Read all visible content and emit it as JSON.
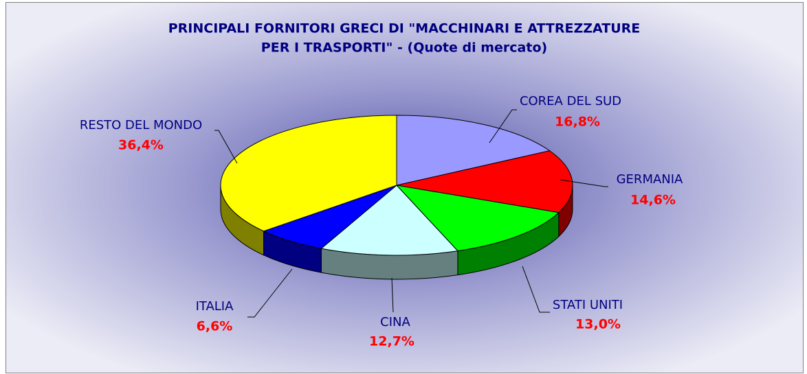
{
  "chart_data": {
    "type": "pie3d",
    "title": [
      "PRINCIPALI FORNITORI GRECI DI \"MACCHINARI E ATTREZZATURE",
      "PER I TRASPORTI\" - (Quote di mercato)"
    ],
    "categories": [
      "COREA DEL SUD",
      "GERMANIA",
      "STATI UNITI",
      "CINA",
      "ITALIA",
      "RESTO DEL MONDO"
    ],
    "values": [
      16.8,
      14.6,
      13.0,
      12.7,
      6.6,
      36.4
    ],
    "value_labels": [
      "16,8%",
      "14,6%",
      "13,0%",
      "12,7%",
      "6,6%",
      "36,4%"
    ],
    "colors": [
      "#9999ff",
      "#ff0000",
      "#00ff00",
      "#ccffff",
      "#0000ff",
      "#ffff00"
    ]
  }
}
